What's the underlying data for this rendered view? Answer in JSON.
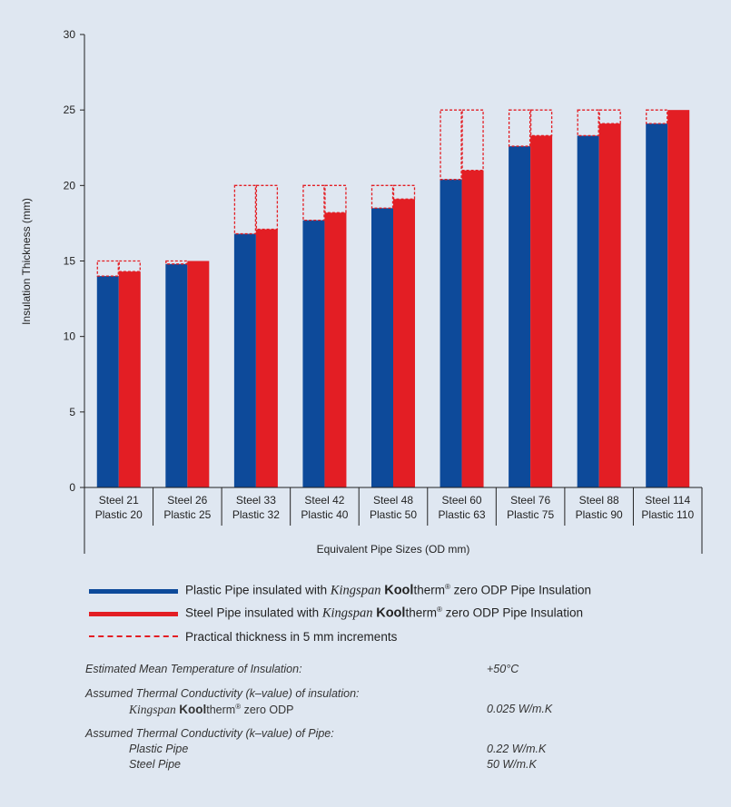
{
  "chart_data": {
    "type": "bar",
    "ylabel": "Insulation Thickness (mm)",
    "xlabel": "Equivalent Pipe Sizes (OD mm)",
    "ylim": [
      0,
      30
    ],
    "yticks": [
      0,
      5,
      10,
      15,
      20,
      25,
      30
    ],
    "categories": [
      [
        "Steel 21",
        "Plastic 20"
      ],
      [
        "Steel 26",
        "Plastic 25"
      ],
      [
        "Steel 33",
        "Plastic 32"
      ],
      [
        "Steel 42",
        "Plastic 40"
      ],
      [
        "Steel 48",
        "Plastic 50"
      ],
      [
        "Steel 60",
        "Plastic 63"
      ],
      [
        "Steel 76",
        "Plastic 75"
      ],
      [
        "Steel 88",
        "Plastic 90"
      ],
      [
        "Steel 114",
        "Plastic 110"
      ]
    ],
    "series": [
      {
        "name": "Plastic Pipe insulated with Kingspan Kooltherm® zero ODP Pipe Insulation",
        "color": "#0d4a9a",
        "values": [
          14.0,
          14.8,
          16.8,
          17.7,
          18.5,
          20.4,
          22.6,
          23.3,
          24.1
        ],
        "practical": [
          15,
          15,
          20,
          20,
          20,
          25,
          25,
          25,
          25
        ]
      },
      {
        "name": "Steel Pipe insulated with Kingspan Kooltherm® zero ODP Pipe Insulation",
        "color": "#e31e24",
        "values": [
          14.3,
          15.0,
          17.1,
          18.2,
          19.1,
          21.0,
          23.3,
          24.1,
          25.0
        ],
        "practical": [
          15,
          15,
          20,
          20,
          20,
          25,
          25,
          25,
          25
        ]
      }
    ],
    "practical_color": "#e31e24",
    "legend_position": "bottom"
  },
  "legend": {
    "plastic_prefix": "Plastic Pipe insulated with",
    "steel_prefix": "Steel Pipe insulated with",
    "brand": "Kingspan",
    "product_bold": "Kool",
    "product_rest": "therm",
    "reg": "®",
    "suffix": "zero ODP Pipe Insulation",
    "practical": "Practical thickness in 5 mm increments"
  },
  "notes": {
    "temp_label": "Estimated Mean Temperature of Insulation:",
    "temp_value": "+50°C",
    "ins_label": "Assumed Thermal Conductivity (k–value) of insulation:",
    "ins_product_suffix": "zero ODP",
    "ins_value": "0.025 W/m.K",
    "pipe_label": "Assumed Thermal Conductivity (k–value) of Pipe:",
    "plastic_label": "Plastic Pipe",
    "plastic_value": "0.22 W/m.K",
    "steel_label": "Steel Pipe",
    "steel_value": "50 W/m.K"
  }
}
